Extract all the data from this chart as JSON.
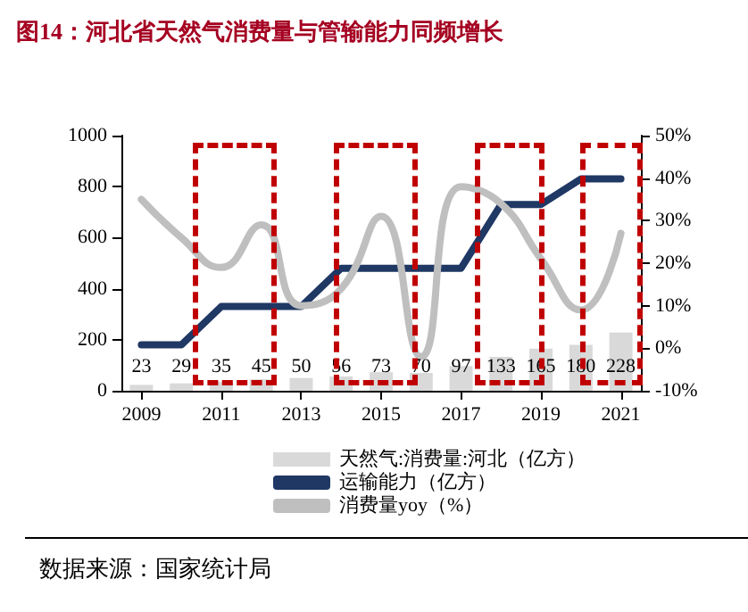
{
  "chart_data": {
    "type": "bar",
    "title": "图14：河北省天然气消费量与管输能力同频增长",
    "x": [
      2009,
      2010,
      2011,
      2012,
      2013,
      2014,
      2015,
      2016,
      2017,
      2018,
      2019,
      2020,
      2021
    ],
    "series": [
      {
        "name": "天然气:消费量:河北（亿方）",
        "color": "#d9d9d9",
        "values": [
          23,
          29,
          35,
          45,
          50,
          56,
          73,
          70,
          97,
          133,
          165,
          180,
          228
        ],
        "value_labels": [
          "23",
          "29",
          "35",
          "45",
          "50",
          "56",
          "73",
          "70",
          "97",
          "133",
          "165",
          "180",
          "228"
        ]
      },
      {
        "type": "line",
        "name": "运输能力（亿方）",
        "color": "#1f3864",
        "values": [
          180,
          180,
          330,
          330,
          330,
          480,
          480,
          480,
          480,
          730,
          730,
          830,
          830
        ]
      },
      {
        "type": "line",
        "name": "消费量yoy（%）",
        "color": "#bfbfbf",
        "axis": "y2",
        "values": [
          35,
          26,
          19,
          29,
          10,
          14,
          31,
          -2,
          38,
          34,
          21,
          9,
          27
        ]
      }
    ],
    "xlim": [
      2008.5,
      2021.5
    ],
    "xticks": [
      2009,
      2011,
      2013,
      2015,
      2017,
      2019,
      2021
    ],
    "ylim": [
      0,
      1000
    ],
    "yticks": [
      0,
      200,
      400,
      600,
      800,
      1000
    ],
    "y2lim": [
      -10,
      50
    ],
    "y2ticks": [
      {
        "value": -10,
        "label": "-10%"
      },
      {
        "value": 0,
        "label": "0%"
      },
      {
        "value": 10,
        "label": "10%"
      },
      {
        "value": 20,
        "label": "20%"
      },
      {
        "value": 30,
        "label": "30%"
      },
      {
        "value": 40,
        "label": "40%"
      },
      {
        "value": 50,
        "label": "50%"
      }
    ],
    "grid": false,
    "legend": "bottom",
    "marker": "none",
    "line_style": "solid",
    "annotations": [
      "数据来源：国家统计局"
    ]
  }
}
